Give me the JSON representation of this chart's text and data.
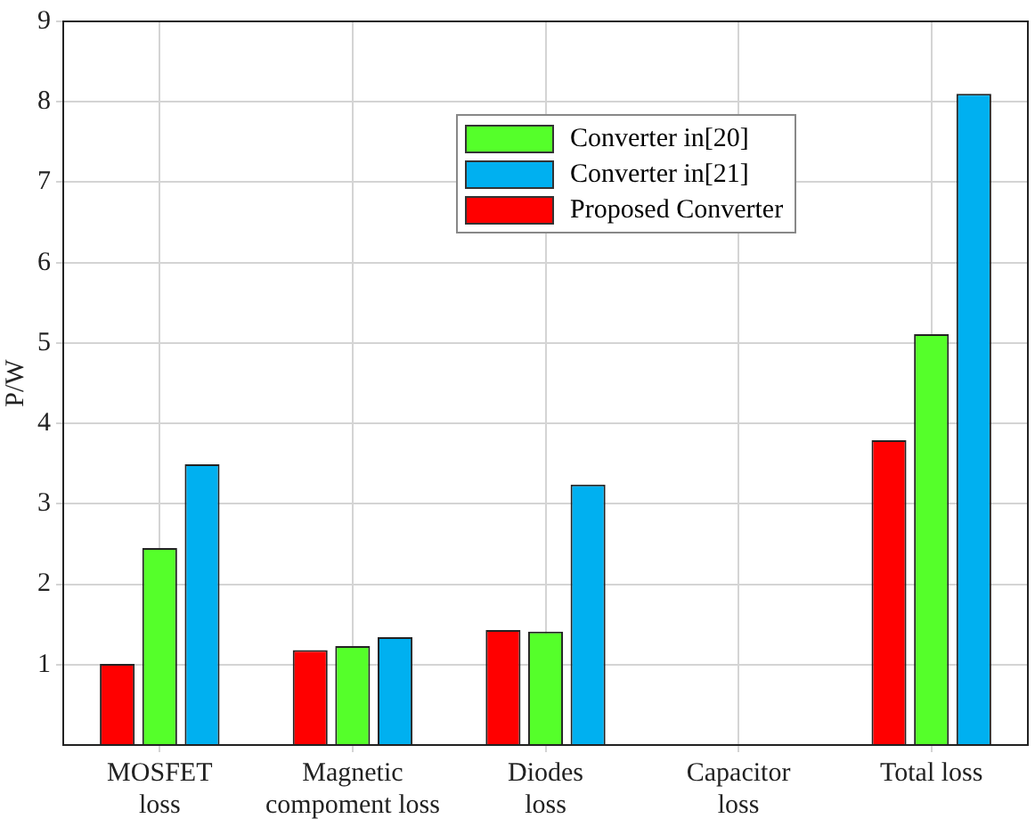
{
  "chart_data": {
    "type": "bar",
    "ylabel": "P/W",
    "categories": [
      "MOSFET loss",
      "Magnetic compoment loss",
      "Diodes loss",
      "Capacitor loss",
      "Total loss"
    ],
    "series": [
      {
        "name": "Proposed Converter",
        "color": "#ff0000",
        "values": [
          1.01,
          1.18,
          1.43,
          null,
          3.79
        ]
      },
      {
        "name": "Converter in[20]",
        "color": "#55ff2a",
        "values": [
          2.45,
          1.23,
          1.41,
          null,
          5.11
        ]
      },
      {
        "name": "Converter in[21]",
        "color": "#00b0f0",
        "values": [
          3.49,
          1.34,
          3.24,
          null,
          8.1
        ]
      }
    ],
    "ylim": [
      0,
      9
    ],
    "yticks": [
      1,
      2,
      3,
      4,
      5,
      6,
      7,
      8,
      9
    ],
    "grid": true,
    "legend": "top right"
  }
}
